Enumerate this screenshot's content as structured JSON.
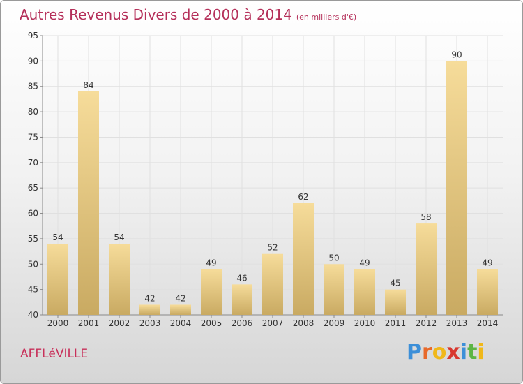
{
  "title": {
    "main": "Autres Revenus Divers de 2000 à 2014",
    "unit": "(en milliers d'€)"
  },
  "commune": "AFFLéVILLE",
  "brand": {
    "letters": [
      "P",
      "r",
      "o",
      "x",
      "i",
      "t",
      "i"
    ],
    "colors": [
      "#3c8fd8",
      "#e8692a",
      "#f0b81a",
      "#d8382f",
      "#3c8fd8",
      "#5cb545",
      "#f0b81a"
    ]
  },
  "colors": {
    "bar_top": "#f6dc9a",
    "bar_bottom": "#c9aa62",
    "accent": "#b5305a"
  },
  "chart_data": {
    "type": "bar",
    "title": "Autres Revenus Divers de 2000 à 2014",
    "categories": [
      "2000",
      "2001",
      "2002",
      "2003",
      "2004",
      "2005",
      "2006",
      "2007",
      "2008",
      "2009",
      "2010",
      "2011",
      "2012",
      "2013",
      "2014"
    ],
    "values": [
      54,
      84,
      54,
      42,
      42,
      49,
      46,
      52,
      62,
      50,
      49,
      45,
      58,
      90,
      49
    ],
    "ylim": [
      40,
      95
    ],
    "yticks": [
      40,
      45,
      50,
      55,
      60,
      65,
      70,
      75,
      80,
      85,
      90,
      95
    ],
    "grid": true,
    "data_labels": true
  }
}
